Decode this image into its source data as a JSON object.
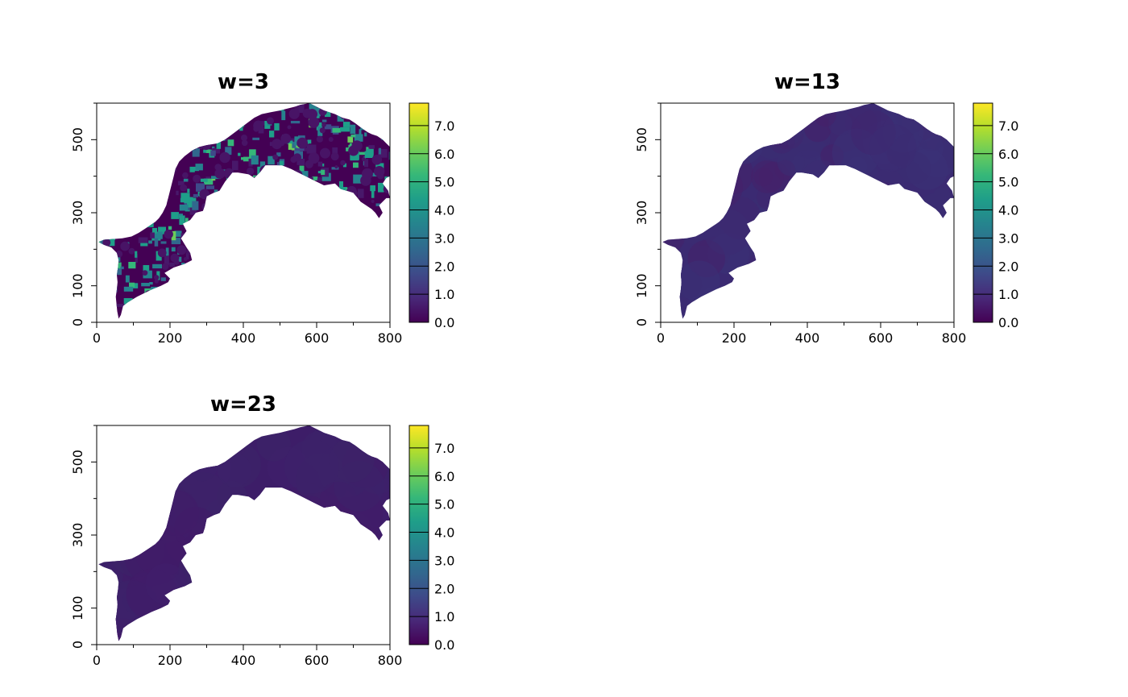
{
  "chart_data": [
    {
      "type": "heatmap",
      "title": "w=3",
      "xlabel": "",
      "ylabel": "",
      "xlim": [
        0,
        800
      ],
      "ylim": [
        0,
        600
      ],
      "xticks": [
        0,
        200,
        400,
        600,
        800
      ],
      "yticks": [
        0,
        100,
        300,
        500
      ],
      "colorbar": {
        "ticks": [
          "0.0",
          "1.0",
          "2.0",
          "3.0",
          "4.0",
          "5.0",
          "6.0",
          "7.0"
        ],
        "range": [
          0,
          7.8
        ]
      },
      "value_range_shown": [
        0.0,
        6.0
      ],
      "pattern": "high-contrast speckled"
    },
    {
      "type": "heatmap",
      "title": "w=13",
      "xlabel": "",
      "ylabel": "",
      "xlim": [
        0,
        800
      ],
      "ylim": [
        0,
        600
      ],
      "xticks": [
        0,
        200,
        400,
        600,
        800
      ],
      "yticks": [
        0,
        100,
        300,
        500
      ],
      "colorbar": {
        "ticks": [
          "0.0",
          "1.0",
          "2.0",
          "3.0",
          "4.0",
          "5.0",
          "6.0",
          "7.0"
        ],
        "range": [
          0,
          7.8
        ]
      },
      "value_range_shown": [
        0.3,
        1.2
      ],
      "pattern": "smooth"
    },
    {
      "type": "heatmap",
      "title": "w=23",
      "xlabel": "",
      "ylabel": "",
      "xlim": [
        0,
        800
      ],
      "ylim": [
        0,
        600
      ],
      "xticks": [
        0,
        200,
        400,
        600,
        800
      ],
      "yticks": [
        0,
        100,
        300,
        500
      ],
      "colorbar": {
        "ticks": [
          "0.0",
          "1.0",
          "2.0",
          "3.0",
          "4.0",
          "5.0",
          "6.0",
          "7.0"
        ],
        "range": [
          0,
          7.8
        ]
      },
      "value_range_shown": [
        0.3,
        0.8
      ],
      "pattern": "very smooth"
    }
  ],
  "colors": {
    "viridis": [
      "#440154",
      "#482878",
      "#3E4A89",
      "#31688E",
      "#26828E",
      "#1F9E89",
      "#35B779",
      "#6DCD59",
      "#B4DE2C",
      "#FDE725"
    ]
  }
}
